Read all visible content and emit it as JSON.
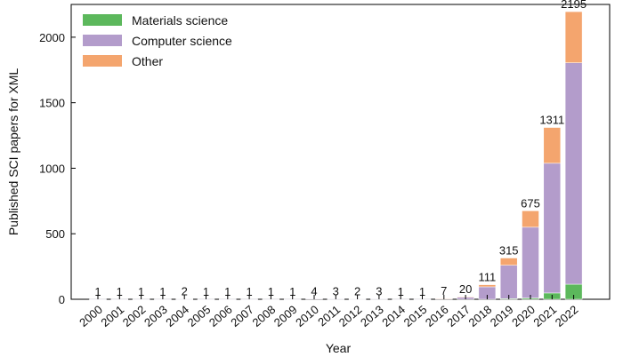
{
  "chart_data": {
    "type": "bar",
    "stacked": true,
    "xlabel": "Year",
    "ylabel": "Published SCI papers for XML",
    "ylim": [
      0,
      2250
    ],
    "yticks": [
      0,
      500,
      1000,
      1500,
      2000
    ],
    "categories": [
      "2000",
      "2001",
      "2002",
      "2003",
      "2004",
      "2005",
      "2006",
      "2007",
      "2008",
      "2009",
      "2010",
      "2011",
      "2012",
      "2013",
      "2014",
      "2015",
      "2016",
      "2017",
      "2018",
      "2019",
      "2020",
      "2021",
      "2022"
    ],
    "totals": [
      1,
      1,
      1,
      1,
      2,
      1,
      1,
      1,
      1,
      1,
      4,
      3,
      2,
      3,
      1,
      1,
      7,
      20,
      111,
      315,
      675,
      1311,
      2195
    ],
    "series": [
      {
        "name": "Materials science",
        "color": "#5cb85c",
        "values": [
          0,
          0,
          0,
          0,
          0,
          0,
          0,
          0,
          0,
          0,
          0,
          0,
          0,
          0,
          0,
          0,
          0,
          0,
          0,
          5,
          10,
          48,
          115
        ]
      },
      {
        "name": "Computer science",
        "color": "#b39ccb",
        "values": [
          1,
          1,
          1,
          1,
          2,
          1,
          1,
          1,
          1,
          1,
          4,
          3,
          2,
          3,
          1,
          1,
          6,
          15,
          95,
          255,
          540,
          990,
          1690
        ]
      },
      {
        "name": "Other",
        "color": "#f4a56e",
        "values": [
          0,
          0,
          0,
          0,
          0,
          0,
          0,
          0,
          0,
          0,
          0,
          0,
          0,
          0,
          0,
          0,
          1,
          5,
          16,
          55,
          125,
          273,
          390
        ]
      }
    ],
    "total_labels_shown_from_index": 0,
    "legend_position": "top-left",
    "grid": false
  }
}
